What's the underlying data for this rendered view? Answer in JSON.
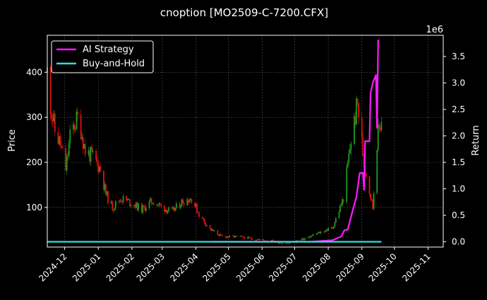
{
  "chart_data": {
    "type": "line",
    "title": "cnoption [MO2509-C-7200.CFX]",
    "ylabel": "Price",
    "y2label": "Return",
    "y2_offset_text": "1e6",
    "x_ticks": [
      "2024-12",
      "2025-01",
      "2025-02",
      "2025-03",
      "2025-04",
      "2025-05",
      "2025-06",
      "2025-07",
      "2025-08",
      "2025-09",
      "2025-10",
      "2025-11"
    ],
    "xlim": [
      "2024-11-15",
      "2025-11-15"
    ],
    "y_ticks": [
      100,
      200,
      300,
      400
    ],
    "ylim": [
      12,
      482
    ],
    "y2_ticks": [
      "0.0",
      "0.5",
      "1.0",
      "1.5",
      "2.0",
      "2.5",
      "3.0",
      "3.5"
    ],
    "y2lim": [
      -0.1,
      3.9
    ],
    "grid": true,
    "legend_position": "upper-left",
    "colors": {
      "background": "#000000",
      "axes": "#ffffff",
      "grid": "#555555",
      "candle_up": "#1f9b1f",
      "candle_down": "#e01010",
      "ai_strategy": "#ff19ff",
      "buy_and_hold": "#2adfdf"
    },
    "price_anchors": [
      [
        "2024-11-15",
        400
      ],
      [
        "2024-11-18",
        330
      ],
      [
        "2024-11-22",
        270
      ],
      [
        "2024-11-27",
        240
      ],
      [
        "2024-12-02",
        185
      ],
      [
        "2024-12-06",
        255
      ],
      [
        "2024-12-10",
        285
      ],
      [
        "2024-12-14",
        300
      ],
      [
        "2024-12-20",
        225
      ],
      [
        "2024-12-28",
        210
      ],
      [
        "2025-01-03",
        185
      ],
      [
        "2025-01-08",
        130
      ],
      [
        "2025-01-14",
        100
      ],
      [
        "2025-01-22",
        120
      ],
      [
        "2025-02-01",
        110
      ],
      [
        "2025-02-10",
        95
      ],
      [
        "2025-02-20",
        115
      ],
      [
        "2025-03-01",
        100
      ],
      [
        "2025-03-10",
        90
      ],
      [
        "2025-03-20",
        115
      ],
      [
        "2025-03-28",
        120
      ],
      [
        "2025-04-05",
        80
      ],
      [
        "2025-04-15",
        50
      ],
      [
        "2025-04-25",
        35
      ],
      [
        "2025-05-10",
        35
      ],
      [
        "2025-05-25",
        30
      ],
      [
        "2025-06-10",
        25
      ],
      [
        "2025-06-25",
        20
      ],
      [
        "2025-07-10",
        30
      ],
      [
        "2025-07-25",
        45
      ],
      [
        "2025-08-05",
        55
      ],
      [
        "2025-08-15",
        120
      ],
      [
        "2025-08-22",
        250
      ],
      [
        "2025-08-28",
        330
      ],
      [
        "2025-09-03",
        200
      ],
      [
        "2025-09-07",
        150
      ],
      [
        "2025-09-11",
        100
      ],
      [
        "2025-09-15",
        250
      ],
      [
        "2025-09-19",
        300
      ]
    ],
    "series": [
      {
        "name": "AI Strategy",
        "points": [
          [
            "2025-04-15",
            0.0
          ],
          [
            "2025-07-15",
            0.0
          ],
          [
            "2025-08-05",
            0.03
          ],
          [
            "2025-08-13",
            0.1
          ],
          [
            "2025-08-16",
            0.22
          ],
          [
            "2025-08-19",
            0.23
          ],
          [
            "2025-08-23",
            0.55
          ],
          [
            "2025-08-27",
            0.85
          ],
          [
            "2025-08-30",
            1.3
          ],
          [
            "2025-09-02",
            1.3
          ],
          [
            "2025-09-03",
            0.98
          ],
          [
            "2025-09-04",
            1.9
          ],
          [
            "2025-09-08",
            1.9
          ],
          [
            "2025-09-09",
            2.8
          ],
          [
            "2025-09-11",
            3.0
          ],
          [
            "2025-09-14",
            3.15
          ],
          [
            "2025-09-15",
            2.15
          ],
          [
            "2025-09-16",
            3.8
          ],
          [
            "2025-09-17",
            3.8
          ]
        ]
      },
      {
        "name": "Buy-and-Hold",
        "points": [
          [
            "2024-11-15",
            0.0
          ],
          [
            "2025-09-19",
            0.0
          ]
        ]
      }
    ]
  }
}
